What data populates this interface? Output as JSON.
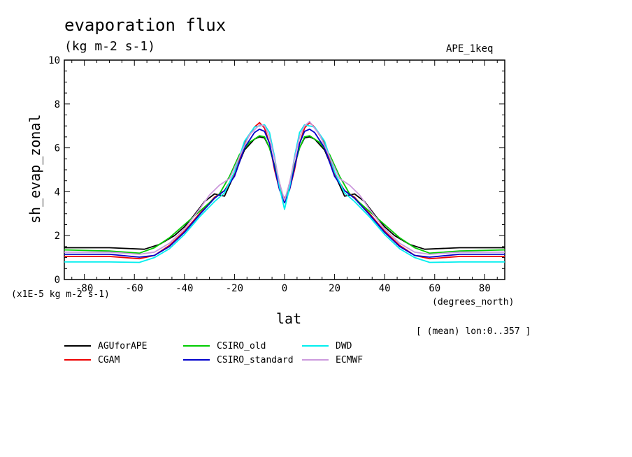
{
  "header": {
    "title": "evaporation flux",
    "units": "(kg m-2 s-1)",
    "identifier": "APE_1keq"
  },
  "axes": {
    "y_label": "sh_evap_zonal",
    "y_scale_note": "(x1E-5 kg m-2 s-1)",
    "x_label": "lat",
    "x_units": "(degrees_north)",
    "footnote": "[ (mean) lon:0..357 ]"
  },
  "chart_data": {
    "type": "line",
    "title": "evaporation flux",
    "xlabel": "lat",
    "ylabel": "sh_evap_zonal",
    "xlim": [
      -88,
      88
    ],
    "ylim": [
      0,
      10
    ],
    "x_ticks": [
      -80,
      -60,
      -40,
      -20,
      0,
      20,
      40,
      60,
      80
    ],
    "y_ticks": [
      0,
      2,
      4,
      6,
      8,
      10
    ],
    "x_tick_labels": [
      "-80",
      "-60",
      "-40",
      "-20",
      "0",
      "20",
      "40",
      "60",
      "80"
    ],
    "y_tick_labels": [
      "0",
      "2",
      "4",
      "6",
      "8",
      "10"
    ],
    "grid": false,
    "legend_position": "bottom",
    "series": [
      {
        "name": "AGUforAPE",
        "color": "#000000",
        "x": [
          -88,
          -70,
          -56,
          -50,
          -44,
          -40,
          -36,
          -32,
          -28,
          -24,
          -20,
          -16,
          -12,
          -10,
          -8,
          -6,
          -4,
          -2,
          0,
          2,
          4,
          6,
          8,
          10,
          12,
          16,
          20,
          24,
          28,
          32,
          36,
          40,
          44,
          50,
          56,
          70,
          88
        ],
        "y": [
          1.45,
          1.45,
          1.38,
          1.6,
          2.0,
          2.4,
          2.95,
          3.55,
          3.9,
          3.8,
          4.8,
          5.9,
          6.4,
          6.5,
          6.45,
          6.0,
          5.2,
          4.4,
          3.5,
          4.4,
          5.2,
          6.0,
          6.45,
          6.5,
          6.4,
          5.9,
          4.8,
          3.8,
          3.9,
          3.55,
          2.95,
          2.4,
          2.0,
          1.6,
          1.38,
          1.45,
          1.45
        ]
      },
      {
        "name": "CGAM",
        "color": "#ee0000",
        "x": [
          -88,
          -70,
          -58,
          -52,
          -46,
          -40,
          -34,
          -28,
          -24,
          -20,
          -16,
          -12,
          -10,
          -8,
          -6,
          -4,
          -2,
          0,
          2,
          4,
          6,
          8,
          10,
          12,
          16,
          20,
          24,
          28,
          34,
          40,
          46,
          52,
          58,
          70,
          88
        ],
        "y": [
          1.05,
          1.05,
          0.95,
          1.1,
          1.55,
          2.2,
          3.0,
          3.75,
          4.05,
          4.8,
          6.2,
          6.95,
          7.15,
          6.9,
          6.2,
          5.0,
          4.1,
          3.7,
          4.1,
          5.0,
          6.2,
          6.9,
          7.15,
          6.95,
          6.2,
          4.8,
          4.05,
          3.75,
          3.0,
          2.2,
          1.55,
          1.1,
          0.95,
          1.05,
          1.05
        ]
      },
      {
        "name": "CSIRO_old",
        "color": "#00cc00",
        "x": [
          -88,
          -70,
          -58,
          -52,
          -46,
          -40,
          -34,
          -30,
          -26,
          -22,
          -18,
          -14,
          -10,
          -8,
          -6,
          -4,
          -2,
          0,
          2,
          4,
          6,
          8,
          10,
          14,
          18,
          22,
          26,
          30,
          34,
          40,
          46,
          52,
          58,
          70,
          88
        ],
        "y": [
          1.35,
          1.3,
          1.2,
          1.45,
          1.9,
          2.5,
          3.1,
          3.5,
          3.9,
          4.7,
          5.7,
          6.25,
          6.55,
          6.5,
          6.0,
          5.2,
          4.3,
          3.5,
          4.3,
          5.2,
          6.0,
          6.5,
          6.55,
          6.25,
          5.7,
          4.7,
          3.9,
          3.5,
          3.1,
          2.5,
          1.9,
          1.45,
          1.2,
          1.3,
          1.35
        ]
      },
      {
        "name": "CSIRO_standard",
        "color": "#0000cc",
        "x": [
          -88,
          -70,
          -58,
          -52,
          -46,
          -40,
          -34,
          -28,
          -24,
          -20,
          -16,
          -12,
          -10,
          -8,
          -6,
          -4,
          -2,
          0,
          2,
          4,
          6,
          8,
          10,
          12,
          16,
          20,
          24,
          28,
          34,
          40,
          46,
          52,
          58,
          70,
          88
        ],
        "y": [
          1.15,
          1.15,
          1.02,
          1.1,
          1.5,
          2.15,
          2.95,
          3.7,
          4.05,
          4.7,
          6.0,
          6.7,
          6.85,
          6.75,
          6.2,
          5.1,
          4.1,
          3.5,
          4.1,
          5.1,
          6.2,
          6.75,
          6.85,
          6.7,
          6.0,
          4.7,
          4.05,
          3.7,
          2.95,
          2.15,
          1.5,
          1.1,
          1.02,
          1.15,
          1.15
        ]
      },
      {
        "name": "DWD",
        "color": "#00eeee",
        "x": [
          -88,
          -70,
          -58,
          -52,
          -46,
          -40,
          -34,
          -28,
          -24,
          -20,
          -16,
          -12,
          -10,
          -8,
          -6,
          -4,
          -2,
          0,
          2,
          4,
          6,
          8,
          10,
          12,
          16,
          20,
          24,
          28,
          34,
          40,
          46,
          52,
          58,
          70,
          88
        ],
        "y": [
          0.8,
          0.8,
          0.78,
          1.0,
          1.4,
          2.05,
          2.85,
          3.55,
          3.95,
          4.9,
          6.3,
          6.95,
          7.0,
          7.05,
          6.7,
          5.6,
          4.2,
          3.2,
          4.2,
          5.6,
          6.7,
          7.05,
          7.0,
          6.95,
          6.3,
          4.9,
          3.95,
          3.55,
          2.85,
          2.05,
          1.4,
          1.0,
          0.78,
          0.8,
          0.8
        ]
      },
      {
        "name": "ECMWF",
        "color": "#cc99dd",
        "x": [
          -88,
          -70,
          -58,
          -52,
          -46,
          -40,
          -34,
          -30,
          -26,
          -22,
          -18,
          -14,
          -10,
          -8,
          -6,
          -4,
          -2,
          0,
          2,
          4,
          6,
          8,
          10,
          14,
          18,
          22,
          26,
          30,
          34,
          40,
          46,
          52,
          58,
          70,
          88
        ],
        "y": [
          1.25,
          1.25,
          1.15,
          1.25,
          1.65,
          2.3,
          3.2,
          3.85,
          4.3,
          4.6,
          5.6,
          6.6,
          7.05,
          7.0,
          6.5,
          5.5,
          4.4,
          3.6,
          4.4,
          5.5,
          6.5,
          7.0,
          7.2,
          6.6,
          5.6,
          4.6,
          4.3,
          3.85,
          3.2,
          2.3,
          1.65,
          1.25,
          1.15,
          1.25,
          1.25
        ]
      }
    ]
  }
}
